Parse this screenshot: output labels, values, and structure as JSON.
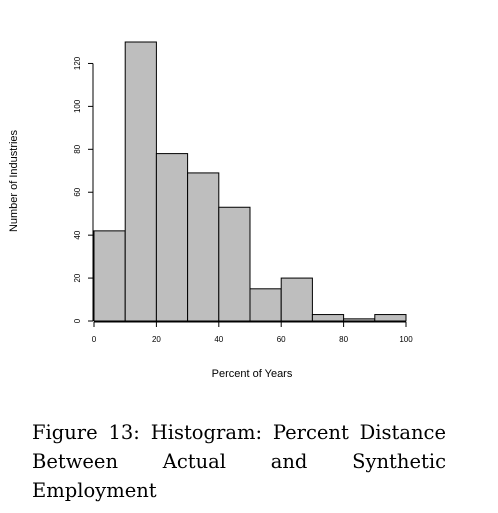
{
  "chart_data": {
    "type": "bar",
    "subtype": "histogram",
    "bin_edges": [
      0,
      10,
      20,
      30,
      40,
      50,
      60,
      70,
      80,
      90,
      100
    ],
    "values": [
      42,
      130,
      78,
      69,
      53,
      15,
      20,
      3,
      1,
      3
    ],
    "xlabel": "Percent of Years",
    "ylabel": "Number of Industries",
    "xlim": [
      0,
      100
    ],
    "ylim": [
      0,
      130
    ],
    "x_ticks": [
      0,
      20,
      40,
      60,
      80,
      100
    ],
    "y_ticks": [
      0,
      20,
      40,
      60,
      80,
      100,
      120
    ],
    "bar_fill": "#bebebe",
    "bar_stroke": "#000000",
    "grid": false,
    "legend": "none"
  },
  "caption": {
    "line1": "Figure 13: Histogram: Percent Distance",
    "line2": "Between Actual and Synthetic Employment"
  }
}
